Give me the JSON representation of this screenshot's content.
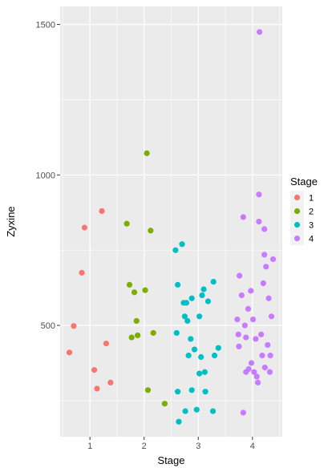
{
  "chart_data": {
    "type": "scatter",
    "title": "",
    "xlabel": "Stage",
    "ylabel": "Zyxine",
    "xlim": [
      0.45,
      4.55
    ],
    "ylim": [
      130,
      1560
    ],
    "xticks": [
      1,
      2,
      3,
      4
    ],
    "yticks": [
      500,
      1000,
      1500
    ],
    "grid": true,
    "panel_background": "#ebebeb",
    "legend": {
      "title": "Stage",
      "placement": "right"
    },
    "series": [
      {
        "name": "1",
        "color": "#F8766D",
        "points": [
          {
            "x": 0.62,
            "y": 410
          },
          {
            "x": 0.7,
            "y": 498
          },
          {
            "x": 0.85,
            "y": 675
          },
          {
            "x": 0.9,
            "y": 825
          },
          {
            "x": 1.08,
            "y": 352
          },
          {
            "x": 1.13,
            "y": 290
          },
          {
            "x": 1.22,
            "y": 880
          },
          {
            "x": 1.3,
            "y": 440
          },
          {
            "x": 1.38,
            "y": 310
          }
        ]
      },
      {
        "name": "2",
        "color": "#7CAE00",
        "points": [
          {
            "x": 1.68,
            "y": 838
          },
          {
            "x": 1.73,
            "y": 635
          },
          {
            "x": 1.77,
            "y": 460
          },
          {
            "x": 1.82,
            "y": 610
          },
          {
            "x": 1.86,
            "y": 515
          },
          {
            "x": 1.88,
            "y": 467
          },
          {
            "x": 2.02,
            "y": 617
          },
          {
            "x": 2.05,
            "y": 1072
          },
          {
            "x": 2.07,
            "y": 285
          },
          {
            "x": 2.12,
            "y": 815
          },
          {
            "x": 2.17,
            "y": 475
          },
          {
            "x": 2.38,
            "y": 240
          }
        ]
      },
      {
        "name": "3",
        "color": "#00BFC4",
        "points": [
          {
            "x": 2.58,
            "y": 750
          },
          {
            "x": 2.6,
            "y": 475
          },
          {
            "x": 2.62,
            "y": 635
          },
          {
            "x": 2.62,
            "y": 280
          },
          {
            "x": 2.64,
            "y": 180
          },
          {
            "x": 2.7,
            "y": 770
          },
          {
            "x": 2.73,
            "y": 575
          },
          {
            "x": 2.75,
            "y": 530
          },
          {
            "x": 2.78,
            "y": 575
          },
          {
            "x": 2.8,
            "y": 515
          },
          {
            "x": 2.82,
            "y": 400
          },
          {
            "x": 2.86,
            "y": 455
          },
          {
            "x": 2.88,
            "y": 590
          },
          {
            "x": 2.88,
            "y": 285
          },
          {
            "x": 2.93,
            "y": 420
          },
          {
            "x": 2.97,
            "y": 220
          },
          {
            "x": 3.02,
            "y": 530
          },
          {
            "x": 3.02,
            "y": 340
          },
          {
            "x": 3.05,
            "y": 395
          },
          {
            "x": 3.07,
            "y": 600
          },
          {
            "x": 3.1,
            "y": 620
          },
          {
            "x": 3.12,
            "y": 345
          },
          {
            "x": 3.13,
            "y": 280
          },
          {
            "x": 3.18,
            "y": 580
          },
          {
            "x": 3.27,
            "y": 215
          },
          {
            "x": 3.28,
            "y": 645
          },
          {
            "x": 3.3,
            "y": 400
          },
          {
            "x": 3.37,
            "y": 425
          },
          {
            "x": 2.76,
            "y": 215
          }
        ]
      },
      {
        "name": "4",
        "color": "#C77CFF",
        "points": [
          {
            "x": 3.72,
            "y": 520
          },
          {
            "x": 3.74,
            "y": 470
          },
          {
            "x": 3.75,
            "y": 430
          },
          {
            "x": 3.76,
            "y": 665
          },
          {
            "x": 3.8,
            "y": 600
          },
          {
            "x": 3.83,
            "y": 860
          },
          {
            "x": 3.83,
            "y": 210
          },
          {
            "x": 3.86,
            "y": 500
          },
          {
            "x": 3.88,
            "y": 460
          },
          {
            "x": 3.88,
            "y": 345
          },
          {
            "x": 3.92,
            "y": 555
          },
          {
            "x": 3.93,
            "y": 355
          },
          {
            "x": 3.97,
            "y": 615
          },
          {
            "x": 3.98,
            "y": 375
          },
          {
            "x": 4.01,
            "y": 520
          },
          {
            "x": 4.03,
            "y": 345
          },
          {
            "x": 4.06,
            "y": 455
          },
          {
            "x": 4.08,
            "y": 330
          },
          {
            "x": 4.1,
            "y": 310
          },
          {
            "x": 4.12,
            "y": 845
          },
          {
            "x": 4.12,
            "y": 935
          },
          {
            "x": 4.13,
            "y": 1475
          },
          {
            "x": 4.16,
            "y": 470
          },
          {
            "x": 4.18,
            "y": 400
          },
          {
            "x": 4.2,
            "y": 640
          },
          {
            "x": 4.22,
            "y": 820
          },
          {
            "x": 4.22,
            "y": 735
          },
          {
            "x": 4.23,
            "y": 360
          },
          {
            "x": 4.25,
            "y": 695
          },
          {
            "x": 4.28,
            "y": 435
          },
          {
            "x": 4.32,
            "y": 345
          },
          {
            "x": 4.33,
            "y": 400
          },
          {
            "x": 4.35,
            "y": 530
          },
          {
            "x": 4.38,
            "y": 720
          },
          {
            "x": 4.3,
            "y": 590
          }
        ]
      }
    ]
  }
}
